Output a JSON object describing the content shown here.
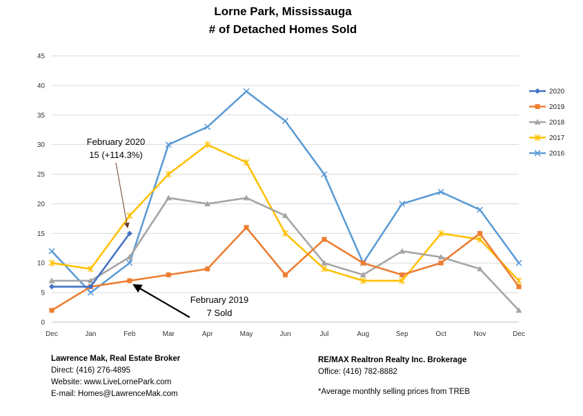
{
  "chart_data": {
    "type": "line",
    "title": "Lorne Park, Mississauga",
    "subtitle": "# of Detached Homes Sold",
    "categories": [
      "Dec",
      "Jan",
      "Feb",
      "Mar",
      "Apr",
      "May",
      "Jun",
      "Jul",
      "Aug",
      "Sep",
      "Oct",
      "Nov",
      "Dec"
    ],
    "ylim": [
      0,
      45
    ],
    "yticks": [
      "0",
      "5",
      "10",
      "15",
      "20",
      "25",
      "30",
      "35",
      "40",
      "45"
    ],
    "grid": true,
    "legend": "right",
    "series": [
      {
        "name": "2020",
        "color": "#4472C4",
        "marker": "diamond",
        "values": [
          6,
          6,
          15,
          null,
          null,
          null,
          null,
          null,
          null,
          null,
          null,
          null,
          null
        ]
      },
      {
        "name": "2019",
        "color": "#ED7D31",
        "marker": "square",
        "values": [
          2,
          6,
          7,
          8,
          9,
          16,
          8,
          14,
          10,
          8,
          10,
          15,
          6
        ]
      },
      {
        "name": "2018",
        "color": "#A5A5A5",
        "marker": "triangle",
        "values": [
          7,
          7,
          11,
          21,
          20,
          21,
          18,
          10,
          8,
          12,
          11,
          9,
          2
        ]
      },
      {
        "name": "2017",
        "color": "#FFC000",
        "marker": "star",
        "values": [
          10,
          9,
          18,
          25,
          30,
          27,
          15,
          9,
          7,
          7,
          15,
          14,
          7
        ]
      },
      {
        "name": "2016",
        "color": "#5B9BD5",
        "marker": "x",
        "values": [
          12,
          5,
          10,
          30,
          33,
          39,
          34,
          25,
          10,
          20,
          22,
          19,
          10
        ]
      }
    ],
    "annotations": [
      {
        "line1": "February 2020",
        "line2": "15 (+114.3%)"
      },
      {
        "line1": "February 2019",
        "line2": "7 Sold"
      }
    ]
  },
  "footer": {
    "left": {
      "name": "Lawrence Mak, Real Estate Broker",
      "direct": "Direct:  (416) 276-4895",
      "website": "Website:  www.LiveLornePark.com",
      "email": "E-mail:  Homes@LawrenceMak.com"
    },
    "right": {
      "brokerage": "RE/MAX Realtron Realty Inc. Brokerage",
      "office": "Office: (416) 782-8882",
      "note": "*Average monthly selling prices from TREB"
    }
  }
}
